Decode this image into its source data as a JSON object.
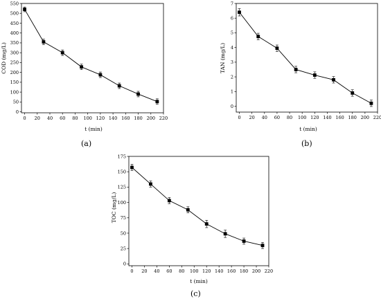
{
  "chart_data": [
    {
      "type": "line",
      "panel_label": "(a)",
      "xlabel": "t (min)",
      "ylabel": "COD (mg/L)",
      "xlim": [
        -5,
        220
      ],
      "ylim": [
        -5,
        550
      ],
      "xticks": [
        0,
        20,
        40,
        60,
        80,
        100,
        120,
        140,
        160,
        180,
        200,
        220
      ],
      "yticks": [
        0,
        50,
        100,
        150,
        200,
        250,
        300,
        350,
        400,
        450,
        500,
        550
      ],
      "x": [
        0,
        30,
        60,
        90,
        120,
        150,
        180,
        210
      ],
      "y": [
        520,
        355,
        300,
        228,
        188,
        132,
        90,
        52
      ],
      "yerr": [
        12,
        14,
        14,
        14,
        14,
        14,
        14,
        14
      ]
    },
    {
      "type": "line",
      "panel_label": "(b)",
      "xlabel": "t (min)",
      "ylabel": "TAN (mg/L)",
      "xlim": [
        -5,
        220
      ],
      "ylim": [
        -0.4,
        7
      ],
      "xticks": [
        0,
        20,
        40,
        60,
        80,
        100,
        120,
        140,
        160,
        180,
        200,
        220
      ],
      "yticks": [
        0,
        1,
        2,
        3,
        4,
        5,
        6,
        7
      ],
      "x": [
        0,
        30,
        60,
        90,
        120,
        150,
        180,
        210
      ],
      "y": [
        6.4,
        4.75,
        3.95,
        2.5,
        2.12,
        1.8,
        0.9,
        0.2
      ],
      "yerr": [
        0.25,
        0.22,
        0.22,
        0.22,
        0.22,
        0.22,
        0.22,
        0.22
      ]
    },
    {
      "type": "line",
      "panel_label": "(c)",
      "xlabel": "t (min)",
      "ylabel": "TOC (mg/L)",
      "xlim": [
        -5,
        220
      ],
      "ylim": [
        -3,
        175
      ],
      "xticks": [
        0,
        20,
        40,
        60,
        80,
        100,
        120,
        140,
        160,
        180,
        200,
        220
      ],
      "yticks": [
        0,
        25,
        50,
        75,
        100,
        125,
        150,
        175
      ],
      "x": [
        0,
        30,
        60,
        90,
        120,
        150,
        180,
        210
      ],
      "y": [
        157,
        130,
        103,
        88,
        65,
        49,
        37,
        30
      ],
      "yerr": [
        5,
        5,
        5,
        5,
        6,
        6,
        5,
        5
      ]
    }
  ]
}
